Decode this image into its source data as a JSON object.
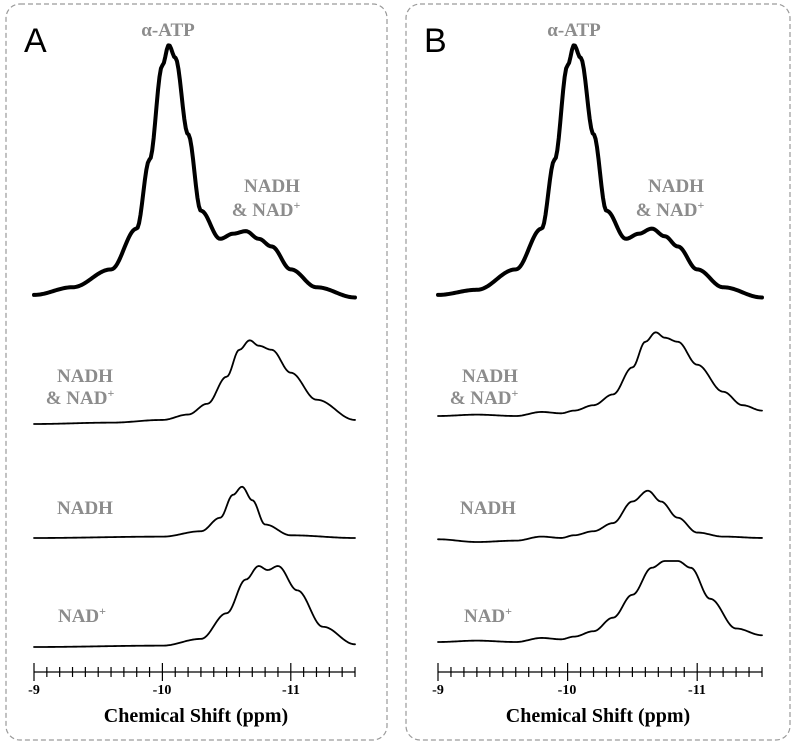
{
  "chart_data": [
    {
      "type": "line",
      "panel": "A",
      "xlabel": "Chemical Shift (ppm)",
      "x_ticks": [
        -9,
        -10,
        -11
      ],
      "xlim": [
        -9,
        -11.5
      ],
      "x_reversed": true,
      "series": [
        {
          "labels": [
            "α-ATP",
            "NADH",
            "& NAD",
            "+"
          ],
          "kind": "total",
          "x": [
            -9.0,
            -9.3,
            -9.6,
            -9.8,
            -9.9,
            -10.0,
            -10.05,
            -10.1,
            -10.2,
            -10.3,
            -10.45,
            -10.55,
            -10.65,
            -10.75,
            -10.85,
            -11.0,
            -11.2,
            -11.5
          ],
          "y": [
            0.02,
            0.05,
            0.12,
            0.28,
            0.55,
            0.92,
            1.0,
            0.95,
            0.65,
            0.35,
            0.24,
            0.26,
            0.27,
            0.24,
            0.21,
            0.12,
            0.05,
            0.01
          ]
        },
        {
          "labels": [
            "NADH",
            "& NAD",
            "+"
          ],
          "kind": "sum",
          "x": [
            -9.0,
            -9.6,
            -10.0,
            -10.2,
            -10.35,
            -10.5,
            -10.6,
            -10.68,
            -10.75,
            -10.85,
            -11.0,
            -11.2,
            -11.5
          ],
          "y": [
            0.0,
            0.01,
            0.03,
            0.07,
            0.15,
            0.35,
            0.55,
            0.62,
            0.58,
            0.55,
            0.38,
            0.18,
            0.03
          ]
        },
        {
          "labels": [
            "NADH"
          ],
          "kind": "nadh",
          "x": [
            -9.0,
            -10.0,
            -10.3,
            -10.45,
            -10.55,
            -10.62,
            -10.7,
            -10.8,
            -11.0,
            -11.5
          ],
          "y": [
            0.0,
            0.01,
            0.05,
            0.15,
            0.32,
            0.38,
            0.28,
            0.1,
            0.02,
            0.0
          ]
        },
        {
          "labels": [
            "NAD",
            "+"
          ],
          "kind": "nad",
          "x": [
            -9.0,
            -10.0,
            -10.3,
            -10.5,
            -10.65,
            -10.75,
            -10.82,
            -10.9,
            -11.05,
            -11.25,
            -11.5
          ],
          "y": [
            0.0,
            0.01,
            0.06,
            0.25,
            0.5,
            0.6,
            0.57,
            0.6,
            0.42,
            0.15,
            0.02
          ]
        }
      ]
    },
    {
      "type": "line",
      "panel": "B",
      "xlabel": "Chemical Shift (ppm)",
      "x_ticks": [
        -9,
        -10,
        -11
      ],
      "xlim": [
        -9,
        -11.5
      ],
      "x_reversed": true,
      "series": [
        {
          "labels": [
            "α-ATP",
            "NADH",
            "& NAD",
            "+"
          ],
          "kind": "total",
          "x": [
            -9.0,
            -9.3,
            -9.6,
            -9.8,
            -9.9,
            -10.0,
            -10.05,
            -10.1,
            -10.2,
            -10.3,
            -10.45,
            -10.55,
            -10.65,
            -10.75,
            -10.85,
            -11.0,
            -11.2,
            -11.5
          ],
          "y": [
            0.02,
            0.04,
            0.12,
            0.28,
            0.55,
            0.92,
            1.0,
            0.95,
            0.65,
            0.35,
            0.24,
            0.26,
            0.28,
            0.25,
            0.21,
            0.12,
            0.05,
            0.01
          ]
        },
        {
          "labels": [
            "NADH",
            "& NAD",
            "+"
          ],
          "kind": "sum",
          "x": [
            -9.0,
            -9.3,
            -9.6,
            -9.8,
            -9.95,
            -10.05,
            -10.2,
            -10.35,
            -10.5,
            -10.6,
            -10.68,
            -10.75,
            -10.85,
            -11.0,
            -11.2,
            -11.35,
            -11.5
          ],
          "y": [
            0.0,
            0.01,
            0.0,
            0.03,
            0.02,
            0.04,
            0.08,
            0.16,
            0.36,
            0.55,
            0.62,
            0.58,
            0.55,
            0.38,
            0.18,
            0.08,
            0.04
          ]
        },
        {
          "labels": [
            "NADH"
          ],
          "kind": "nadh",
          "x": [
            -9.0,
            -9.3,
            -9.6,
            -9.8,
            -9.95,
            -10.05,
            -10.2,
            -10.35,
            -10.5,
            -10.62,
            -10.72,
            -10.85,
            -11.0,
            -11.2,
            -11.5
          ],
          "y": [
            0.02,
            0.0,
            0.01,
            0.04,
            0.03,
            0.05,
            0.08,
            0.14,
            0.3,
            0.38,
            0.3,
            0.18,
            0.07,
            0.04,
            0.03
          ]
        },
        {
          "labels": [
            "NAD",
            "+"
          ],
          "kind": "nad",
          "x": [
            -9.0,
            -9.3,
            -9.6,
            -9.8,
            -9.95,
            -10.05,
            -10.2,
            -10.35,
            -10.5,
            -10.65,
            -10.75,
            -10.85,
            -10.95,
            -11.1,
            -11.3,
            -11.5
          ],
          "y": [
            0.0,
            0.01,
            0.0,
            0.03,
            0.02,
            0.04,
            0.08,
            0.18,
            0.35,
            0.55,
            0.6,
            0.6,
            0.55,
            0.32,
            0.1,
            0.05
          ]
        }
      ]
    }
  ]
}
